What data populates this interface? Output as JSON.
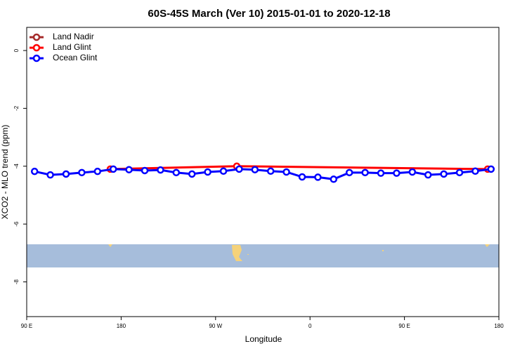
{
  "chart_data": {
    "type": "line",
    "title": "60S-45S March (Ver 10)   2015-01-01 to 2020-12-18",
    "x_label": "Longitude",
    "y_label": "XCO2 - MLO trend (ppm)",
    "xlim": [
      90,
      540
    ],
    "ylim": [
      -9.2,
      0.8
    ],
    "xticks": [
      {
        "value": 90,
        "label": "90 E"
      },
      {
        "value": 180,
        "label": "180"
      },
      {
        "value": 270,
        "label": "90 W"
      },
      {
        "value": 360,
        "label": "0"
      },
      {
        "value": 450,
        "label": "90 E"
      },
      {
        "value": 540,
        "label": "180"
      }
    ],
    "yticks": [
      0,
      -2,
      -4,
      -6,
      -8
    ],
    "legend": "top-left",
    "series": [
      {
        "name": "Land Nadir",
        "color": "#a52a2a",
        "x": [],
        "values": []
      },
      {
        "name": "Land Glint",
        "color": "#ff0000",
        "x": [
          169.7,
          290.2,
          529.3
        ],
        "values": [
          -4.1,
          -4.0,
          -4.1
        ]
      },
      {
        "name": "Ocean Glint",
        "color": "#0000ff",
        "x": [
          97.5,
          112.5,
          127.5,
          142.5,
          157.5,
          172.5,
          187.5,
          202.5,
          217.5,
          232.5,
          247.5,
          262.5,
          277.5,
          292.5,
          307.5,
          322.5,
          337.5,
          352.5,
          367.5,
          382.5,
          397.5,
          412.5,
          427.5,
          442.5,
          457.5,
          472.5,
          487.5,
          502.5,
          517.5,
          532.5
        ],
        "values": [
          -4.18,
          -4.3,
          -4.27,
          -4.22,
          -4.18,
          -4.1,
          -4.12,
          -4.15,
          -4.13,
          -4.22,
          -4.27,
          -4.2,
          -4.17,
          -4.1,
          -4.12,
          -4.17,
          -4.2,
          -4.37,
          -4.38,
          -4.45,
          -4.22,
          -4.22,
          -4.24,
          -4.24,
          -4.2,
          -4.3,
          -4.27,
          -4.22,
          -4.17,
          -4.1
        ]
      }
    ]
  }
}
